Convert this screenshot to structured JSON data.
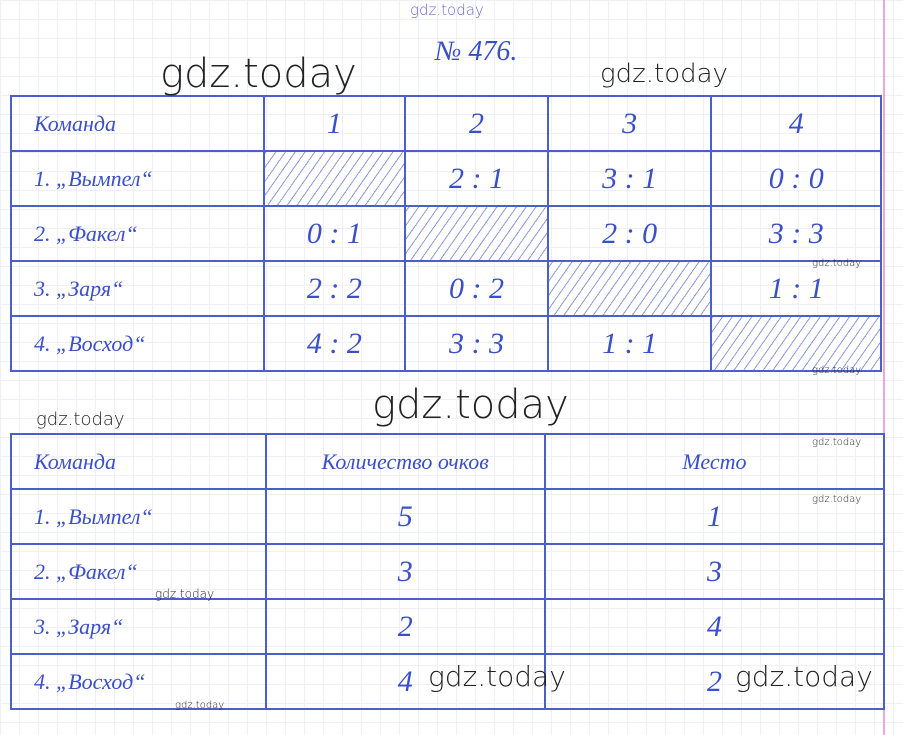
{
  "title": "№ 476.",
  "watermark": "gdz.today",
  "table1": {
    "headers": [
      "Команда",
      "1",
      "2",
      "3",
      "4"
    ],
    "rows": [
      {
        "team": "1. „Вымпел“",
        "cells": [
          "",
          "2 : 1",
          "3 : 1",
          "0 : 0"
        ]
      },
      {
        "team": "2. „Факел“",
        "cells": [
          "0 : 1",
          "",
          "2 : 0",
          "3 : 3"
        ]
      },
      {
        "team": "3. „Заря“",
        "cells": [
          "2 : 2",
          "0 : 2",
          "",
          "1 : 1"
        ]
      },
      {
        "team": "4. „Восход“",
        "cells": [
          "4 : 2",
          "3 : 3",
          "1 : 1",
          ""
        ]
      }
    ]
  },
  "table2": {
    "headers": [
      "Команда",
      "Количество очков",
      "Место"
    ],
    "rows": [
      {
        "team": "1. „Вымпел“",
        "points": "5",
        "place": "1"
      },
      {
        "team": "2. „Факел“",
        "points": "3",
        "place": "3"
      },
      {
        "team": "3. „Заря“",
        "points": "2",
        "place": "4"
      },
      {
        "team": "4. „Восход“",
        "points": "4",
        "place": "2"
      }
    ]
  },
  "colors": {
    "ink": "#3a4fc8",
    "margin_line": "#e8a8e0"
  }
}
